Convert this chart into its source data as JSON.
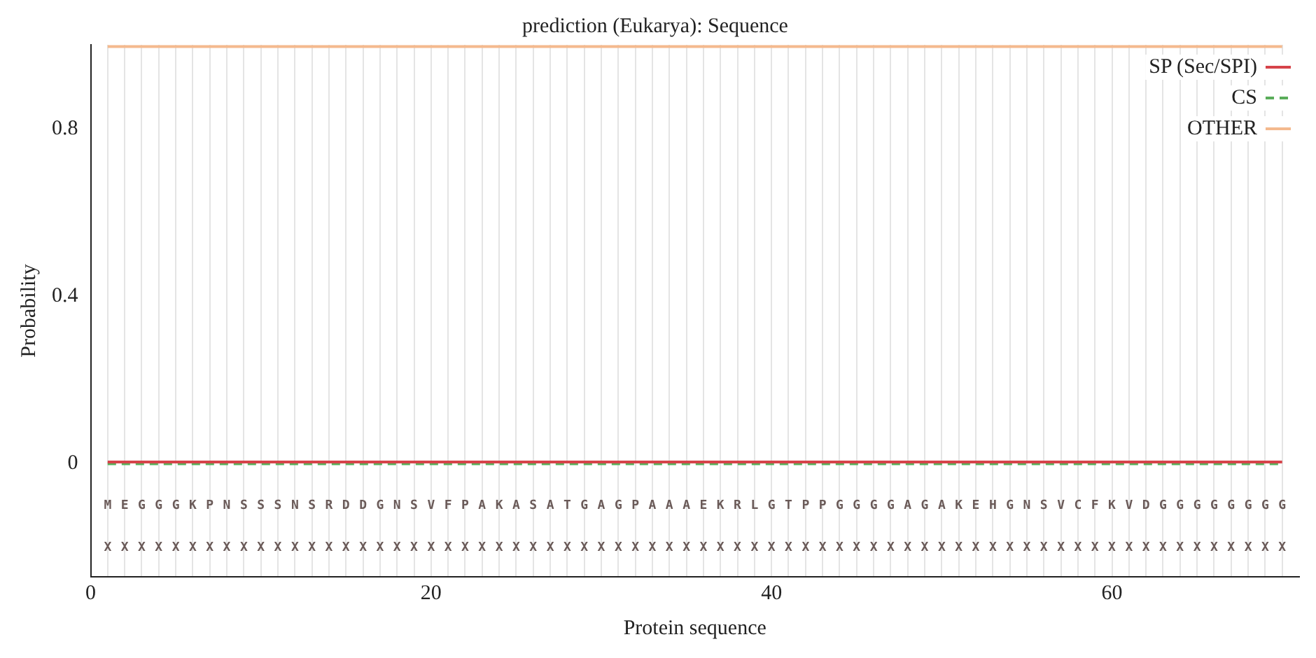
{
  "chart_data": {
    "type": "line",
    "title": "prediction (Eukarya): Sequence",
    "xlabel": "Protein sequence",
    "ylabel": "Probability",
    "x": [
      1,
      2,
      3,
      4,
      5,
      6,
      7,
      8,
      9,
      10,
      11,
      12,
      13,
      14,
      15,
      16,
      17,
      18,
      19,
      20,
      21,
      22,
      23,
      24,
      25,
      26,
      27,
      28,
      29,
      30,
      31,
      32,
      33,
      34,
      35,
      36,
      37,
      38,
      39,
      40,
      41,
      42,
      43,
      44,
      45,
      46,
      47,
      48,
      49,
      50,
      51,
      52,
      53,
      54,
      55,
      56,
      57,
      58,
      59,
      60,
      61,
      62,
      63,
      64,
      65,
      66,
      67,
      68,
      69,
      70
    ],
    "series": [
      {
        "name": "SP (Sec/SPI)",
        "color": "#d6434a",
        "line_style": "solid",
        "values": [
          0.004,
          0.004,
          0.004,
          0.004,
          0.004,
          0.004,
          0.004,
          0.004,
          0.004,
          0.004,
          0.004,
          0.004,
          0.004,
          0.004,
          0.004,
          0.004,
          0.004,
          0.004,
          0.004,
          0.004,
          0.004,
          0.004,
          0.004,
          0.004,
          0.004,
          0.004,
          0.004,
          0.004,
          0.004,
          0.004,
          0.004,
          0.004,
          0.004,
          0.004,
          0.004,
          0.004,
          0.004,
          0.004,
          0.004,
          0.004,
          0.004,
          0.004,
          0.004,
          0.004,
          0.004,
          0.004,
          0.004,
          0.004,
          0.004,
          0.004,
          0.004,
          0.004,
          0.004,
          0.004,
          0.004,
          0.004,
          0.004,
          0.004,
          0.004,
          0.004,
          0.004,
          0.004,
          0.004,
          0.004,
          0.004,
          0.004,
          0.004,
          0.004,
          0.004,
          0.004
        ]
      },
      {
        "name": "CS",
        "color": "#5aad5a",
        "line_style": "dashed",
        "values": [
          0,
          0,
          0,
          0,
          0,
          0,
          0,
          0,
          0,
          0,
          0,
          0,
          0,
          0,
          0,
          0,
          0,
          0,
          0,
          0,
          0,
          0,
          0,
          0,
          0,
          0,
          0,
          0,
          0,
          0,
          0,
          0,
          0,
          0,
          0,
          0,
          0,
          0,
          0,
          0,
          0,
          0,
          0,
          0,
          0,
          0,
          0,
          0,
          0,
          0,
          0,
          0,
          0,
          0,
          0,
          0,
          0,
          0,
          0,
          0,
          0,
          0,
          0,
          0,
          0,
          0,
          0,
          0,
          0,
          0
        ]
      },
      {
        "name": "OTHER",
        "color": "#f4b98e",
        "line_style": "solid",
        "values": [
          0.996,
          0.996,
          0.996,
          0.996,
          0.996,
          0.996,
          0.996,
          0.996,
          0.996,
          0.996,
          0.996,
          0.996,
          0.996,
          0.996,
          0.996,
          0.996,
          0.996,
          0.996,
          0.996,
          0.996,
          0.996,
          0.996,
          0.996,
          0.996,
          0.996,
          0.996,
          0.996,
          0.996,
          0.996,
          0.996,
          0.996,
          0.996,
          0.996,
          0.996,
          0.996,
          0.996,
          0.996,
          0.996,
          0.996,
          0.996,
          0.996,
          0.996,
          0.996,
          0.996,
          0.996,
          0.996,
          0.996,
          0.996,
          0.996,
          0.996,
          0.996,
          0.996,
          0.996,
          0.996,
          0.996,
          0.996,
          0.996,
          0.996,
          0.996,
          0.996,
          0.996,
          0.996,
          0.996,
          0.996,
          0.996,
          0.996,
          0.996,
          0.996,
          0.996,
          0.996
        ]
      }
    ],
    "xlim": [
      0,
      71
    ],
    "ylim": [
      -0.27,
      1
    ],
    "xticks": [
      0,
      {
        "value": 1,
        "label": null
      },
      {
        "value": 2,
        "label": null
      },
      {
        "value": 3,
        "label": null
      },
      {
        "value": 4,
        "label": null
      },
      {
        "value": 5,
        "label": null
      },
      {
        "value": 6,
        "label": null
      },
      {
        "value": 7,
        "label": null
      },
      {
        "value": 8,
        "label": null
      },
      {
        "value": 9,
        "label": null
      },
      {
        "value": 10,
        "label": null
      },
      {
        "value": 11,
        "label": null
      },
      {
        "value": 12,
        "label": null
      },
      {
        "value": 13,
        "label": null
      },
      {
        "value": 14,
        "label": null
      },
      {
        "value": 15,
        "label": null
      },
      {
        "value": 16,
        "label": null
      },
      {
        "value": 17,
        "label": null
      },
      {
        "value": 18,
        "label": null
      },
      {
        "value": 19,
        "label": null
      },
      20,
      {
        "value": 21,
        "label": null
      },
      {
        "value": 22,
        "label": null
      },
      {
        "value": 23,
        "label": null
      },
      {
        "value": 24,
        "label": null
      },
      {
        "value": 25,
        "label": null
      },
      {
        "value": 26,
        "label": null
      },
      {
        "value": 27,
        "label": null
      },
      {
        "value": 28,
        "label": null
      },
      {
        "value": 29,
        "label": null
      },
      {
        "value": 30,
        "label": null
      },
      {
        "value": 31,
        "label": null
      },
      {
        "value": 32,
        "label": null
      },
      {
        "value": 33,
        "label": null
      },
      {
        "value": 34,
        "label": null
      },
      {
        "value": 35,
        "label": null
      },
      {
        "value": 36,
        "label": null
      },
      {
        "value": 37,
        "label": null
      },
      {
        "value": 38,
        "label": null
      },
      {
        "value": 39,
        "label": null
      },
      40,
      {
        "value": 41,
        "label": null
      },
      {
        "value": 42,
        "label": null
      },
      {
        "value": 43,
        "label": null
      },
      {
        "value": 44,
        "label": null
      },
      {
        "value": 45,
        "label": null
      },
      {
        "value": 46,
        "label": null
      },
      {
        "value": 47,
        "label": null
      },
      {
        "value": 48,
        "label": null
      },
      {
        "value": 49,
        "label": null
      },
      {
        "value": 50,
        "label": null
      },
      {
        "value": 51,
        "label": null
      },
      {
        "value": 52,
        "label": null
      },
      {
        "value": 53,
        "label": null
      },
      {
        "value": 54,
        "label": null
      },
      {
        "value": 55,
        "label": null
      },
      {
        "value": 56,
        "label": null
      },
      {
        "value": 57,
        "label": null
      },
      {
        "value": 58,
        "label": null
      },
      {
        "value": 59,
        "label": null
      },
      60,
      {
        "value": 61,
        "label": null
      },
      {
        "value": 62,
        "label": null
      },
      {
        "value": 63,
        "label": null
      },
      {
        "value": 64,
        "label": null
      },
      {
        "value": 65,
        "label": null
      },
      {
        "value": 66,
        "label": null
      },
      {
        "value": 67,
        "label": null
      },
      {
        "value": 68,
        "label": null
      },
      {
        "value": 69,
        "label": null
      },
      {
        "value": 70,
        "label": null
      }
    ],
    "yticks": [
      0,
      0.4,
      0.8
    ],
    "grid": "x",
    "legend": "top right",
    "marker": "none",
    "annotations": [
      "MEGGGKPNSSSNSRDDGNSVFPAKASATGAGPAAAEKRLGTPPGGGGAGAKEHGNSVCFKVDGGGGGGGG",
      "XXXXXXXXXXXXXXXXXXXXXXXXXXXXXXXXXXXXXXXXXXXXXXXXXXXXXXXXXXXXXXXXXXXXXX"
    ]
  }
}
